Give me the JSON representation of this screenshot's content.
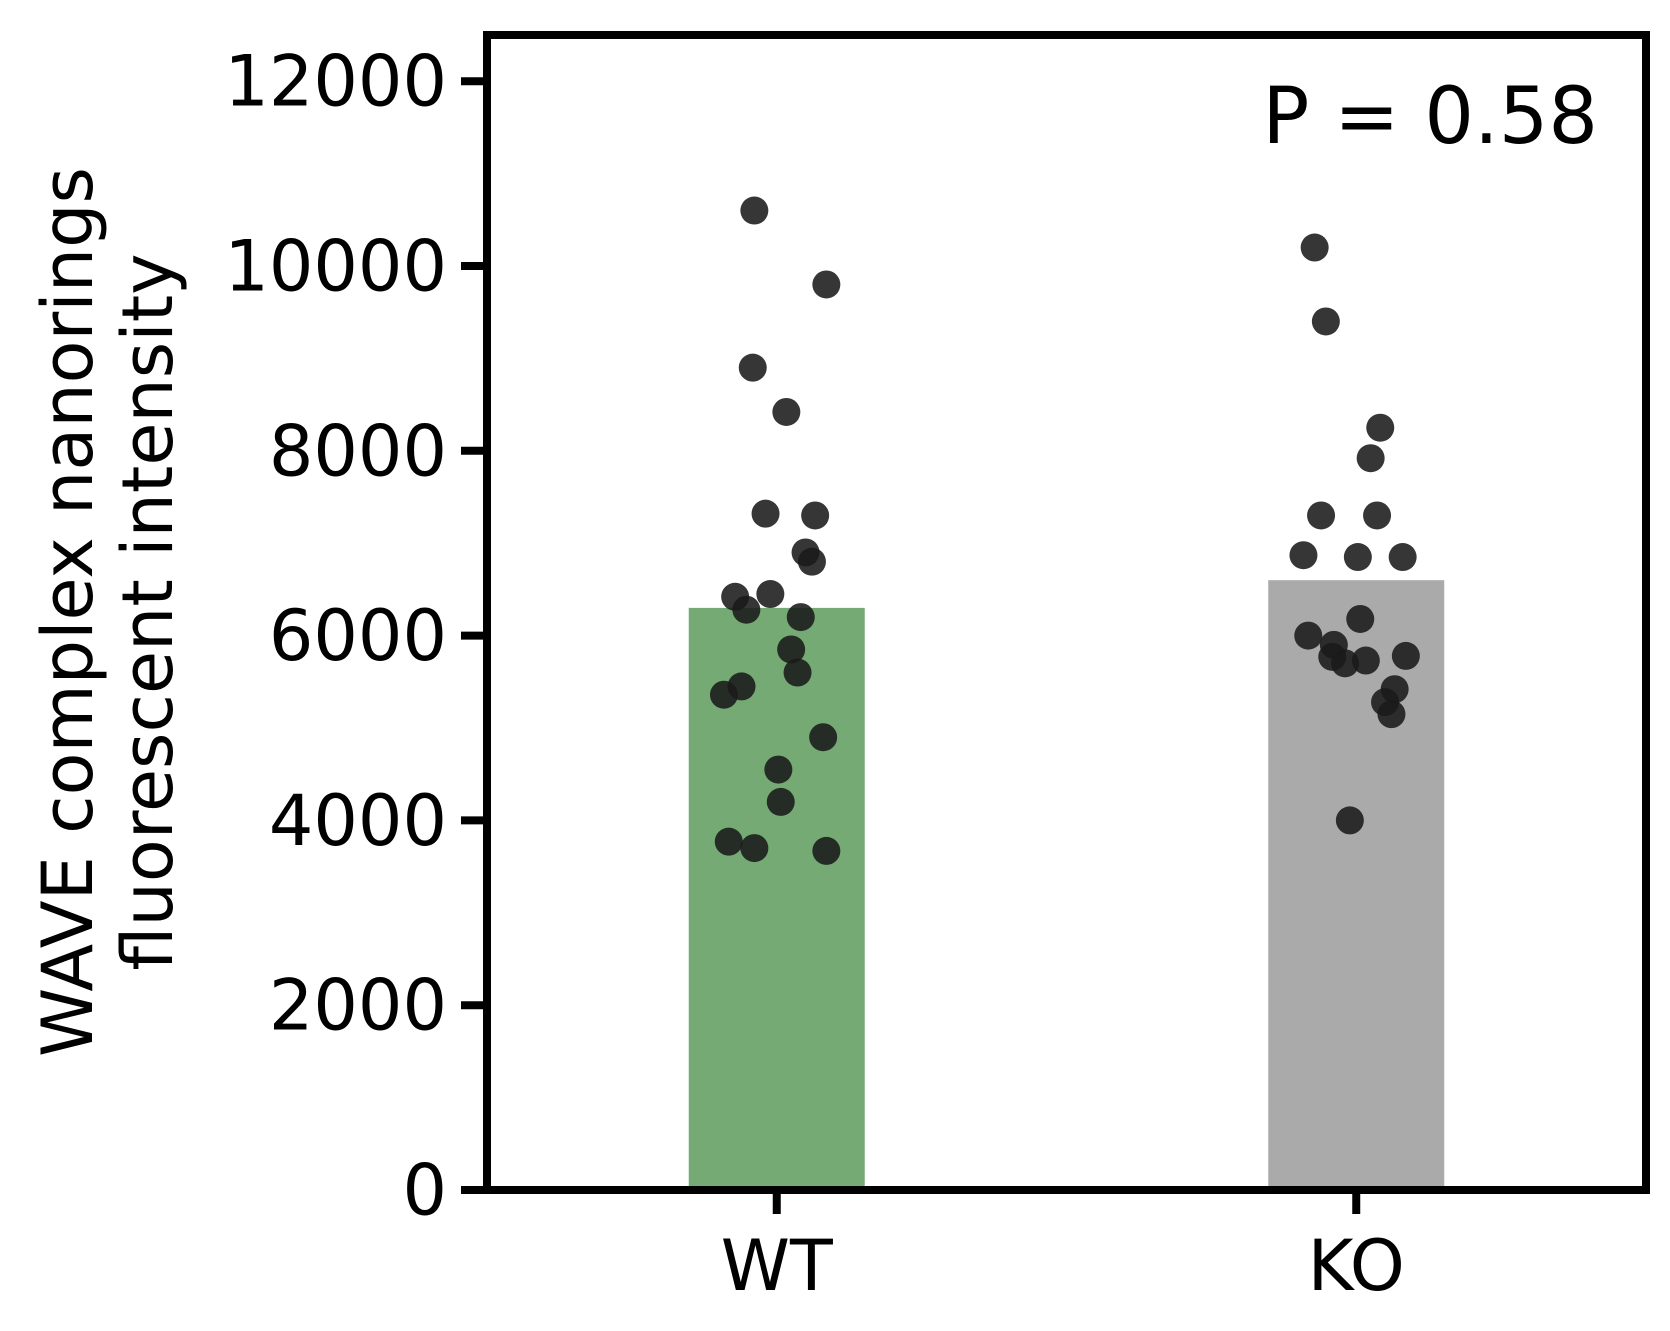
{
  "chart_data": {
    "type": "bar",
    "categories": [
      "WT",
      "KO"
    ],
    "values": [
      6300,
      6600
    ],
    "bar_colors": [
      "#75aa74",
      "#aaaaaa"
    ],
    "point_color": "#1a1a1a",
    "ylabel_lines": [
      "WAVE complex nanorings",
      "fluorescent intensity"
    ],
    "xlabel": "",
    "title": "",
    "ylim": [
      0,
      12500
    ],
    "yticks": [
      0,
      2000,
      4000,
      6000,
      8000,
      10000,
      12000
    ],
    "grid": false,
    "legend": "none",
    "annotation": "P = 0.58",
    "points": [
      {
        "category": "WT",
        "values": [
          10600,
          9800,
          8900,
          8420,
          7320,
          7300,
          6900,
          6800,
          6450,
          6420,
          6280,
          6200,
          5850,
          5600,
          5450,
          5360,
          4900,
          4550,
          4200,
          3770,
          3700,
          3670
        ]
      },
      {
        "category": "KO",
        "values": [
          10200,
          9400,
          8250,
          7920,
          7300,
          7300,
          6870,
          6850,
          6850,
          6180,
          6000,
          5900,
          5780,
          5770,
          5730,
          5700,
          5420,
          5280,
          5150,
          4000
        ]
      }
    ]
  }
}
